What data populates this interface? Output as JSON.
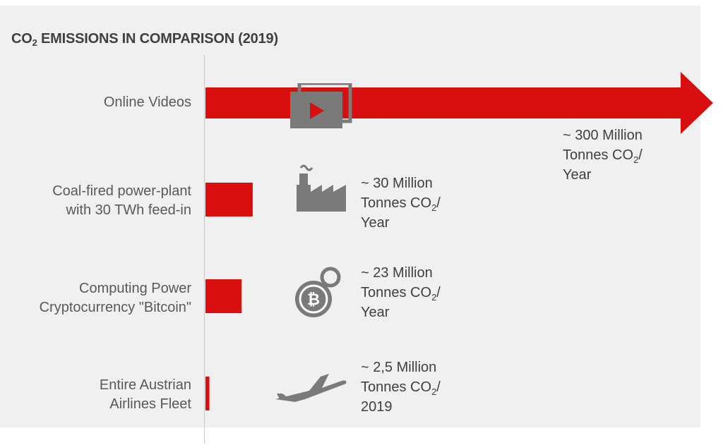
{
  "title": {
    "prefix": "CO",
    "subscript": "2",
    "suffix": " EMISSIONS IN COMPARISON (2019)"
  },
  "chart_data": {
    "type": "bar",
    "orientation": "horizontal",
    "categories": [
      "Online Videos",
      "Coal-fired power-plant with 30 TWh feed-in",
      "Computing Power Cryptocurrency \"Bitcoin\"",
      "Entire Austrian Airlines Fleet"
    ],
    "values": [
      300,
      30,
      23,
      2.5
    ],
    "unit": "Million Tonnes CO2",
    "bar_color": "#d90f0f",
    "icon_color": "#7a7a7a",
    "first_bar_style": "arrow",
    "icons": [
      "video-play-icon",
      "factory-icon",
      "bitcoin-icon",
      "airplane-icon"
    ]
  },
  "labels": {
    "cat0": "Online Videos",
    "cat1_line1": "Coal-fired power-plant",
    "cat1_line2": "with 30 TWh feed-in",
    "cat2_line1": "Computing Power",
    "cat2_line2": "Cryptocurrency \"Bitcoin\"",
    "cat3_line1": "Entire Austrian",
    "cat3_line2": "Airlines Fleet",
    "val0_line1": "~ 300 Million",
    "val1_line1": "~ 30 Million",
    "val2_line1": "~ 23 Million",
    "val3_line1": "~ 2,5 Million",
    "tonnes": "Tonnes CO",
    "co2_sub": "2",
    "slash": "/",
    "year": "Year",
    "year_2019": "2019"
  }
}
